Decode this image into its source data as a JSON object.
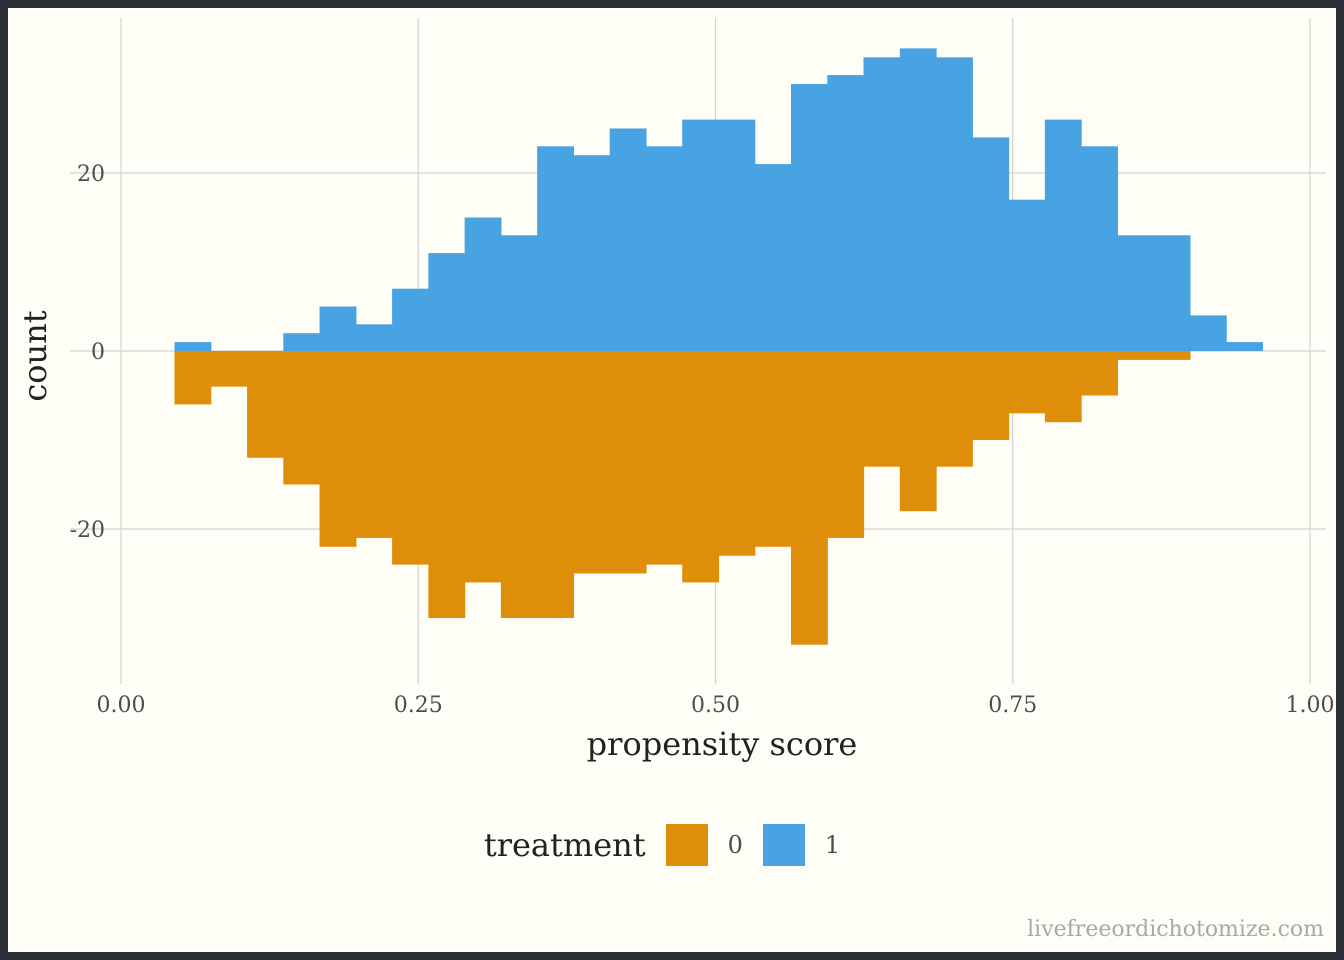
{
  "chart_data": {
    "type": "bar",
    "subtype": "mirrored histogram",
    "xlabel": "propensity score",
    "ylabel": "count",
    "xlim": [
      0.0,
      1.0
    ],
    "ylim": [
      -36,
      36
    ],
    "x_ticks": [
      0.0,
      0.25,
      0.5,
      0.75,
      1.0
    ],
    "x_tick_labels": [
      "0.00",
      "0.25",
      "0.50",
      "0.75",
      "1.00"
    ],
    "y_ticks": [
      -20,
      0,
      20
    ],
    "y_tick_labels": [
      "-20",
      "0",
      "20"
    ],
    "grid": true,
    "legend_position": "bottom",
    "legend_title": "treatment",
    "bin_width": 0.0305,
    "bin_starts": [
      0.045,
      0.0755,
      0.106,
      0.1365,
      0.167,
      0.1975,
      0.228,
      0.2585,
      0.289,
      0.3195,
      0.35,
      0.3805,
      0.411,
      0.4415,
      0.472,
      0.5025,
      0.533,
      0.5635,
      0.594,
      0.6245,
      0.655,
      0.6855,
      0.716,
      0.7465,
      0.777,
      0.8075,
      0.838,
      0.8685,
      0.899,
      0.9295
    ],
    "series": [
      {
        "name": "1",
        "color": "#48a3e2",
        "direction": "up",
        "values": [
          1,
          0,
          0,
          2,
          5,
          3,
          7,
          11,
          15,
          13,
          23,
          22,
          25,
          23,
          26,
          26,
          21,
          30,
          31,
          33,
          34,
          33,
          24,
          17,
          26,
          23,
          13,
          13,
          4,
          1
        ]
      },
      {
        "name": "0",
        "color": "#df8e0a",
        "direction": "down",
        "values": [
          6,
          4,
          12,
          15,
          22,
          21,
          24,
          30,
          26,
          30,
          30,
          25,
          25,
          24,
          26,
          23,
          22,
          33,
          21,
          13,
          18,
          13,
          10,
          7,
          8,
          5,
          1,
          1,
          0,
          0
        ]
      }
    ]
  },
  "legend": {
    "title": "treatment",
    "items": [
      {
        "label": "0",
        "color": "#df8e0a"
      },
      {
        "label": "1",
        "color": "#48a3e2"
      }
    ]
  },
  "watermark": "livefreeordichotomize.com"
}
